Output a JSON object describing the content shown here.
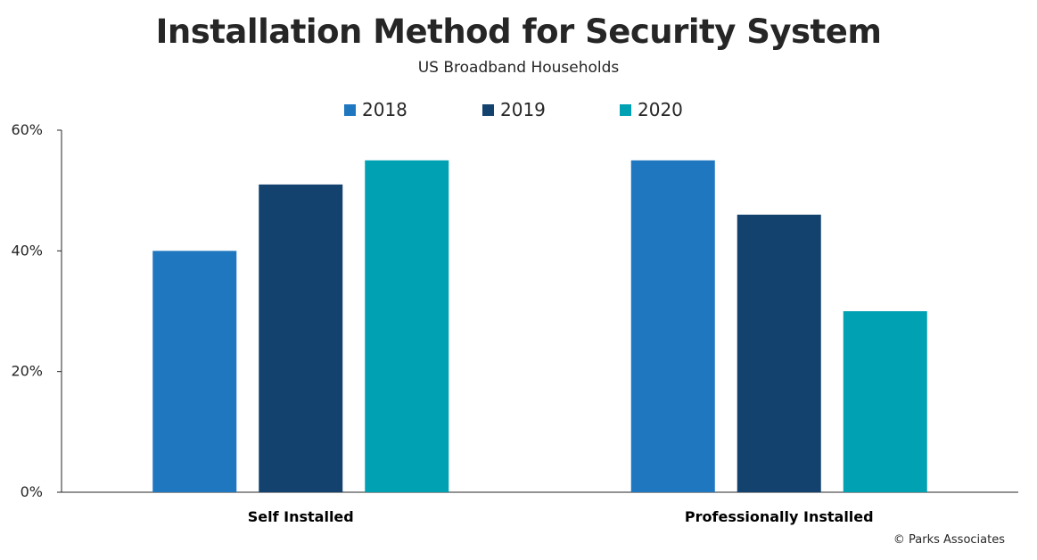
{
  "chart_data": {
    "type": "bar",
    "title": "Installation Method for Security System",
    "subtitle": "US Broadband  Households",
    "categories": [
      "Self Installed",
      "Professionally Installed"
    ],
    "series": [
      {
        "name": "2018",
        "color": "#1f77c0",
        "values": [
          40,
          55
        ]
      },
      {
        "name": "2019",
        "color": "#12426d",
        "values": [
          51,
          46
        ]
      },
      {
        "name": "2020",
        "color": "#00a1b3",
        "values": [
          55,
          30
        ]
      }
    ],
    "ylim": [
      0,
      60
    ],
    "yticks": [
      0,
      20,
      40,
      60
    ],
    "ytick_labels": [
      "0%",
      "20%",
      "40%",
      "60%"
    ],
    "xlabel": "",
    "ylabel": "",
    "grid": false,
    "legend_position": "top-center"
  },
  "footer": {
    "copyright": "© Parks Associates"
  }
}
